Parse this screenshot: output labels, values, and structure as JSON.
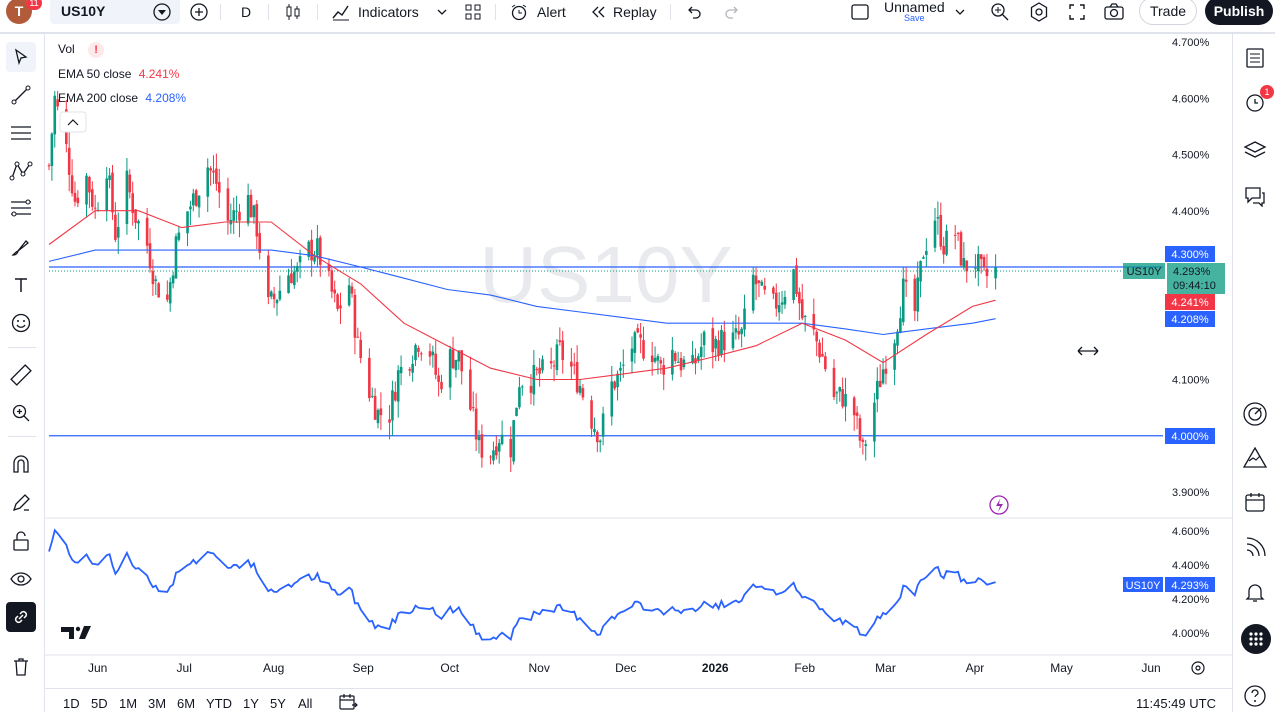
{
  "topbar": {
    "avatar_letter": "T",
    "avatar_badge": "11",
    "symbol": "US10Y",
    "interval": "D",
    "indicators_label": "Indicators",
    "alert_label": "Alert",
    "replay_label": "Replay",
    "layout_name": "Unnamed",
    "layout_save": "Save",
    "trade_label": "Trade",
    "publish_label": "Publish"
  },
  "legends": {
    "vol_label": "Vol",
    "vol_warning": "!",
    "ema50_label": "EMA 50 close",
    "ema50_value": "4.241%",
    "ema200_label": "EMA 200 close",
    "ema200_value": "4.208%"
  },
  "watermark": "US10Y",
  "price_labels": {
    "line_upper": "4.300%",
    "last_symbol": "US10Y",
    "last_value": "4.293%",
    "countdown": "09:44:10",
    "ema50": "4.241%",
    "ema200": "4.208%",
    "line_lower": "4.000%",
    "pane2_symbol": "US10Y",
    "pane2_value": "4.293%"
  },
  "bottombar": {
    "ranges": [
      "1D",
      "5D",
      "1M",
      "3M",
      "6M",
      "YTD",
      "1Y",
      "5Y",
      "All"
    ],
    "clock": "11:45:49 UTC"
  },
  "right_toolbar": {
    "alerts_badge": "1"
  },
  "colors": {
    "bull": "#089981",
    "bear": "#f23645",
    "ema50": "#f23645",
    "ema200": "#2962ff",
    "hline": "#2962ff",
    "line_series": "#2962ff",
    "publish_bg": "#131722"
  },
  "chart_data": [
    {
      "type": "candlestick",
      "symbol": "US10Y",
      "interval": "1D",
      "ylim": [
        3.86,
        4.71
      ],
      "y_ticks": [
        "4.700%",
        "4.600%",
        "4.500%",
        "4.400%",
        "4.100%",
        "3.900%"
      ],
      "x_ticks": [
        "Jun",
        "Jul",
        "Aug",
        "Sep",
        "Oct",
        "Nov",
        "Dec",
        "2026",
        "Feb",
        "Mar",
        "Apr",
        "May",
        "Jun"
      ],
      "x_ranges": [
        [
          "2025-05-20",
          "2026-06-10"
        ]
      ],
      "close_series": [
        [
          "2025-05-20",
          4.48
        ],
        [
          "2025-05-22",
          4.6
        ],
        [
          "2025-05-26",
          4.51
        ],
        [
          "2025-05-29",
          4.42
        ],
        [
          "2025-06-02",
          4.46
        ],
        [
          "2025-06-05",
          4.4
        ],
        [
          "2025-06-09",
          4.48
        ],
        [
          "2025-06-12",
          4.36
        ],
        [
          "2025-06-16",
          4.45
        ],
        [
          "2025-06-19",
          4.39
        ],
        [
          "2025-06-23",
          4.34
        ],
        [
          "2025-06-26",
          4.27
        ],
        [
          "2025-06-30",
          4.24
        ],
        [
          "2025-07-03",
          4.34
        ],
        [
          "2025-07-07",
          4.4
        ],
        [
          "2025-07-10",
          4.43
        ],
        [
          "2025-07-14",
          4.48
        ],
        [
          "2025-07-17",
          4.45
        ],
        [
          "2025-07-21",
          4.38
        ],
        [
          "2025-07-24",
          4.4
        ],
        [
          "2025-07-28",
          4.42
        ],
        [
          "2025-07-31",
          4.37
        ],
        [
          "2025-08-04",
          4.23
        ],
        [
          "2025-08-07",
          4.25
        ],
        [
          "2025-08-11",
          4.29
        ],
        [
          "2025-08-14",
          4.29
        ],
        [
          "2025-08-18",
          4.33
        ],
        [
          "2025-08-21",
          4.33
        ],
        [
          "2025-08-25",
          4.27
        ],
        [
          "2025-08-28",
          4.22
        ],
        [
          "2025-09-01",
          4.27
        ],
        [
          "2025-09-04",
          4.16
        ],
        [
          "2025-09-08",
          4.08
        ],
        [
          "2025-09-11",
          4.04
        ],
        [
          "2025-09-15",
          4.04
        ],
        [
          "2025-09-18",
          4.11
        ],
        [
          "2025-09-22",
          4.14
        ],
        [
          "2025-09-25",
          4.17
        ],
        [
          "2025-09-29",
          4.15
        ],
        [
          "2025-10-02",
          4.09
        ],
        [
          "2025-10-06",
          4.14
        ],
        [
          "2025-10-09",
          4.14
        ],
        [
          "2025-10-13",
          4.05
        ],
        [
          "2025-10-16",
          3.98
        ],
        [
          "2025-10-20",
          3.97
        ],
        [
          "2025-10-23",
          4.0
        ],
        [
          "2025-10-27",
          3.98
        ],
        [
          "2025-10-30",
          4.1
        ],
        [
          "2025-11-03",
          4.1
        ],
        [
          "2025-11-06",
          4.11
        ],
        [
          "2025-11-10",
          4.12
        ],
        [
          "2025-11-13",
          4.15
        ],
        [
          "2025-11-17",
          4.12
        ],
        [
          "2025-11-20",
          4.09
        ],
        [
          "2025-11-24",
          4.03
        ],
        [
          "2025-11-27",
          4.0
        ],
        [
          "2025-12-01",
          4.09
        ],
        [
          "2025-12-04",
          4.11
        ],
        [
          "2025-12-08",
          4.16
        ],
        [
          "2025-12-11",
          4.16
        ],
        [
          "2025-12-15",
          4.15
        ],
        [
          "2025-12-18",
          4.12
        ],
        [
          "2025-12-22",
          4.15
        ],
        [
          "2025-12-25",
          4.13
        ],
        [
          "2025-12-29",
          4.12
        ],
        [
          "2026-01-02",
          4.17
        ],
        [
          "2026-01-05",
          4.16
        ],
        [
          "2026-01-08",
          4.17
        ],
        [
          "2026-01-12",
          4.17
        ],
        [
          "2026-01-15",
          4.18
        ],
        [
          "2026-01-19",
          4.28
        ],
        [
          "2026-01-22",
          4.25
        ],
        [
          "2026-01-26",
          4.23
        ],
        [
          "2026-01-29",
          4.25
        ],
        [
          "2026-02-02",
          4.29
        ],
        [
          "2026-02-05",
          4.21
        ],
        [
          "2026-02-09",
          4.18
        ],
        [
          "2026-02-12",
          4.14
        ],
        [
          "2026-02-16",
          4.07
        ],
        [
          "2026-02-19",
          4.07
        ],
        [
          "2026-02-23",
          4.04
        ],
        [
          "2026-02-26",
          3.97
        ],
        [
          "2026-03-02",
          4.06
        ],
        [
          "2026-03-05",
          4.12
        ],
        [
          "2026-03-09",
          4.18
        ],
        [
          "2026-03-12",
          4.26
        ],
        [
          "2026-03-16",
          4.22
        ],
        [
          "2026-03-19",
          4.33
        ],
        [
          "2026-03-23",
          4.39
        ],
        [
          "2026-03-26",
          4.34
        ],
        [
          "2026-03-30",
          4.36
        ],
        [
          "2026-04-02",
          4.3
        ],
        [
          "2026-04-06",
          4.31
        ],
        [
          "2026-04-09",
          4.28
        ],
        [
          "2026-04-13",
          4.293
        ]
      ],
      "ema50_close": [
        [
          "2025-05-20",
          4.34
        ],
        [
          "2025-06-05",
          4.4
        ],
        [
          "2025-06-20",
          4.4
        ],
        [
          "2025-07-05",
          4.37
        ],
        [
          "2025-07-20",
          4.38
        ],
        [
          "2025-08-05",
          4.38
        ],
        [
          "2025-08-20",
          4.32
        ],
        [
          "2025-09-05",
          4.27
        ],
        [
          "2025-09-20",
          4.2
        ],
        [
          "2025-10-05",
          4.16
        ],
        [
          "2025-10-20",
          4.12
        ],
        [
          "2025-11-05",
          4.1
        ],
        [
          "2025-11-20",
          4.1
        ],
        [
          "2025-12-05",
          4.11
        ],
        [
          "2025-12-20",
          4.12
        ],
        [
          "2026-01-05",
          4.14
        ],
        [
          "2026-01-20",
          4.16
        ],
        [
          "2026-02-05",
          4.2
        ],
        [
          "2026-02-20",
          4.17
        ],
        [
          "2026-03-05",
          4.13
        ],
        [
          "2026-03-20",
          4.18
        ],
        [
          "2026-04-05",
          4.23
        ],
        [
          "2026-04-13",
          4.241
        ]
      ],
      "ema200_close": [
        [
          "2025-05-20",
          4.31
        ],
        [
          "2025-06-05",
          4.33
        ],
        [
          "2025-06-20",
          4.33
        ],
        [
          "2025-07-05",
          4.33
        ],
        [
          "2025-07-20",
          4.33
        ],
        [
          "2025-08-05",
          4.33
        ],
        [
          "2025-08-20",
          4.32
        ],
        [
          "2025-09-05",
          4.3
        ],
        [
          "2025-09-20",
          4.28
        ],
        [
          "2025-10-05",
          4.26
        ],
        [
          "2025-10-20",
          4.25
        ],
        [
          "2025-11-05",
          4.23
        ],
        [
          "2025-11-20",
          4.22
        ],
        [
          "2025-12-05",
          4.21
        ],
        [
          "2025-12-20",
          4.2
        ],
        [
          "2026-01-05",
          4.2
        ],
        [
          "2026-01-20",
          4.2
        ],
        [
          "2026-02-05",
          4.2
        ],
        [
          "2026-02-20",
          4.19
        ],
        [
          "2026-03-05",
          4.18
        ],
        [
          "2026-03-20",
          4.19
        ],
        [
          "2026-04-05",
          4.2
        ],
        [
          "2026-04-13",
          4.208
        ]
      ],
      "horizontal_lines": [
        4.3,
        4.0
      ],
      "last_value": 4.293
    },
    {
      "type": "line",
      "symbol": "US10Y",
      "ylim": [
        3.94,
        4.66
      ],
      "y_ticks": [
        "4.600%",
        "4.400%",
        "4.200%",
        "4.000%"
      ],
      "last_value": 4.293
    }
  ]
}
